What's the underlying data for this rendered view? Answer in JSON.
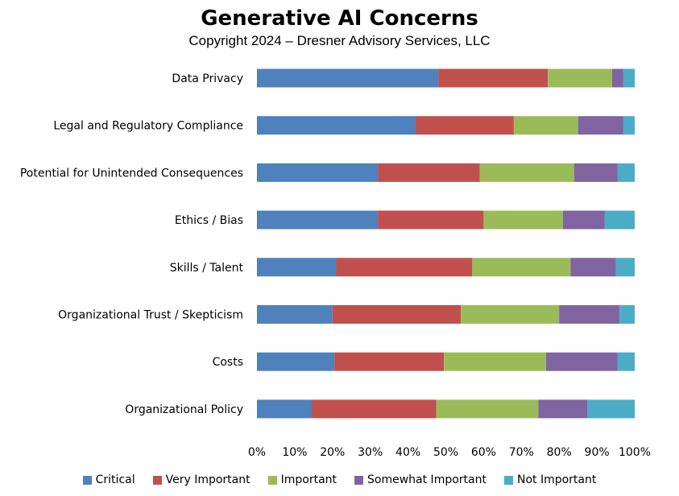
{
  "chart_data": {
    "type": "bar",
    "orientation": "horizontal",
    "stacked": true,
    "percent": true,
    "title": "Generative AI Concerns",
    "subtitle": "Copyright 2024 – Dresner Advisory Services, LLC",
    "categories": [
      "Data Privacy",
      "Legal and Regulatory Compliance",
      "Potential for Unintended Consequences",
      "Ethics / Bias",
      "Skills / Talent",
      "Organizational Trust / Skepticism",
      "Costs",
      "Organizational Policy"
    ],
    "series": [
      {
        "name": "Critical",
        "color": "#4F81BD",
        "values": [
          48,
          42,
          32,
          32,
          21,
          20,
          20.5,
          14.5
        ]
      },
      {
        "name": "Very Important",
        "color": "#C0504D",
        "values": [
          29,
          26,
          27,
          28,
          36,
          34,
          29,
          33
        ]
      },
      {
        "name": "Important",
        "color": "#9BBB59",
        "values": [
          17,
          17,
          25,
          21,
          26,
          26,
          27,
          27
        ]
      },
      {
        "name": "Somewhat Important",
        "color": "#8064A2",
        "values": [
          3,
          12,
          11.5,
          11,
          12,
          16,
          19,
          13
        ]
      },
      {
        "name": "Not Important",
        "color": "#4BACC6",
        "values": [
          3,
          3,
          4.5,
          8,
          5,
          4,
          4.5,
          12.5
        ]
      }
    ],
    "xlim": [
      0,
      100
    ],
    "xticks": [
      "0%",
      "10%",
      "20%",
      "30%",
      "40%",
      "50%",
      "60%",
      "70%",
      "80%",
      "90%",
      "100%"
    ],
    "legend_position": "bottom",
    "grid": false
  }
}
